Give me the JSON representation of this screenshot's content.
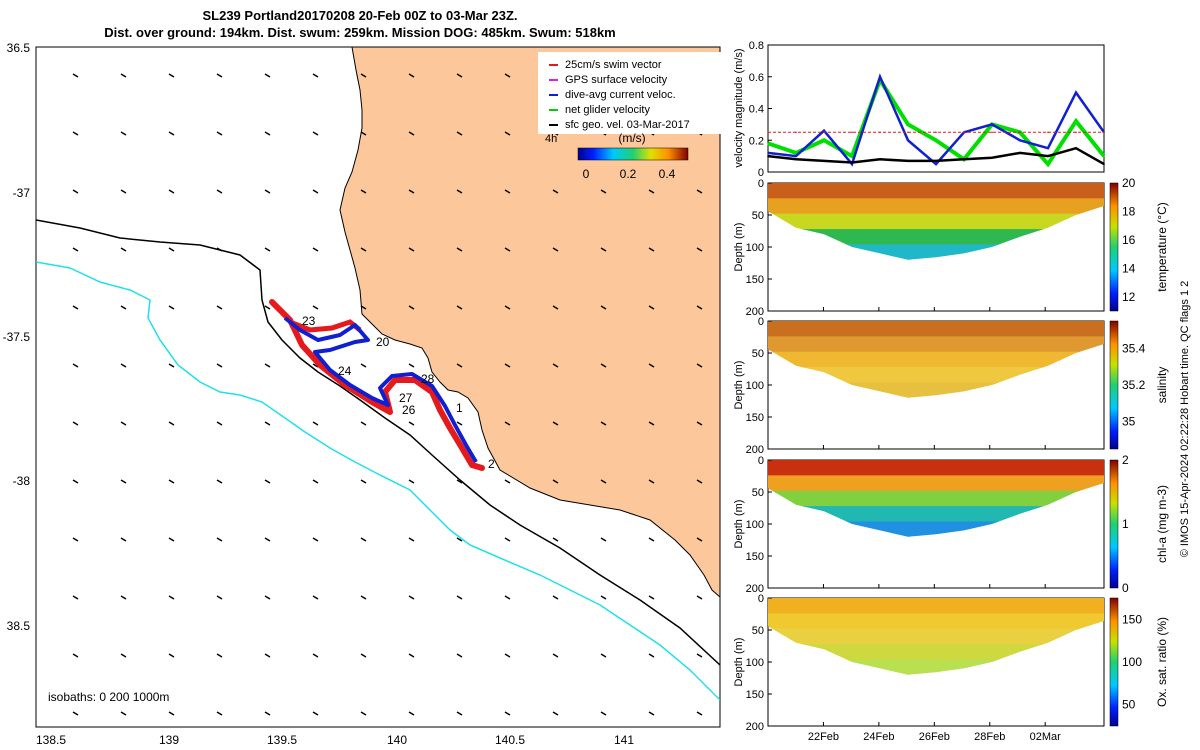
{
  "title_line1": "SL239 Portland20170208 20-Feb 00Z to 03-Mar 23Z.",
  "title_line2": "Dist. over ground: 194km. Dist. swum: 259km. Mission DOG: 485km. Swum: 518km",
  "map": {
    "x_ticks": [
      "138.5",
      "139",
      "139.5",
      "140",
      "140.5",
      "141"
    ],
    "y_ticks": [
      "36.5",
      "-37",
      "-37.5",
      "-38",
      "38.5"
    ],
    "legend": [
      "25cm/s swim vector",
      "GPS surface velocity",
      "dive-avg current veloc.",
      "net glider velocity",
      "sfc geo. vel. 03-Mar-2017"
    ],
    "time_label": "4h",
    "colorbar_unit": "(m/s)",
    "colorbar_ticks": [
      "0",
      "0.2",
      "0.4"
    ],
    "isobaths_label": "isobaths: 0   200  1000m",
    "day_labels": [
      "23",
      "20",
      "24",
      "28",
      "27",
      "26",
      "1",
      "2"
    ],
    "colors": {
      "land": "#fcc89b",
      "iso200": "#000000",
      "iso1000": "#20e0e8",
      "track_red": "#e41a1c",
      "track_blue": "#1020d0"
    }
  },
  "chart_data": [
    {
      "type": "line",
      "title": "",
      "xlabel": "",
      "ylabel": "velocity magnitude (m/s)",
      "ylim": [
        0,
        0.8
      ],
      "y_ticks": [
        "0",
        "0.2",
        "0.4",
        "0.6",
        "0.8"
      ],
      "x_days": [
        0,
        1,
        2,
        3,
        4,
        5,
        6,
        7,
        8,
        9,
        10,
        11,
        12
      ],
      "series": [
        {
          "name": "net glider velocity",
          "color": "#00e000",
          "values": [
            0.18,
            0.12,
            0.2,
            0.1,
            0.58,
            0.3,
            0.2,
            0.08,
            0.3,
            0.25,
            0.05,
            0.32,
            0.1
          ]
        },
        {
          "name": "dive-avg current veloc.",
          "color": "#1020d0",
          "values": [
            0.12,
            0.1,
            0.26,
            0.05,
            0.6,
            0.2,
            0.05,
            0.25,
            0.3,
            0.2,
            0.15,
            0.5,
            0.25
          ]
        },
        {
          "name": "sfc geo. vel.",
          "color": "#000000",
          "values": [
            0.1,
            0.08,
            0.07,
            0.06,
            0.08,
            0.07,
            0.07,
            0.08,
            0.09,
            0.12,
            0.1,
            0.15,
            0.05
          ]
        },
        {
          "name": "25cm/s reference",
          "color": "#e41a1c",
          "values": [
            0.25,
            0.25,
            0.25,
            0.25,
            0.25,
            0.25,
            0.25,
            0.25,
            0.25,
            0.25,
            0.25,
            0.25,
            0.25
          ]
        }
      ]
    },
    {
      "type": "heatmap",
      "ylabel": "Depth (m)",
      "y_ticks": [
        "0",
        "50",
        "100",
        "150",
        "200"
      ],
      "colorbar_label": "temperature (°C)",
      "colorbar_ticks": [
        "12",
        "14",
        "16",
        "18",
        "20"
      ],
      "clim": [
        11,
        20
      ]
    },
    {
      "type": "heatmap",
      "ylabel": "Depth (m)",
      "y_ticks": [
        "0",
        "50",
        "100",
        "150",
        "200"
      ],
      "colorbar_label": "salinity",
      "colorbar_ticks": [
        "35",
        "35.2",
        "35.4"
      ],
      "clim": [
        34.85,
        35.55
      ]
    },
    {
      "type": "heatmap",
      "ylabel": "Depth (m)",
      "y_ticks": [
        "0",
        "50",
        "100",
        "150",
        "200"
      ],
      "colorbar_label": "chl-a (mg m-3)",
      "colorbar_ticks": [
        "0",
        "1",
        "2"
      ],
      "clim": [
        0,
        2
      ]
    },
    {
      "type": "heatmap",
      "ylabel": "Depth (m)",
      "y_ticks": [
        "0",
        "50",
        "100",
        "150",
        "200"
      ],
      "colorbar_label": "Ox. sat. ratio (%)",
      "colorbar_ticks": [
        "50",
        "100",
        "150"
      ],
      "clim": [
        25,
        175
      ]
    }
  ],
  "time_axis": [
    "22Feb",
    "24Feb",
    "26Feb",
    "28Feb",
    "02Mar"
  ],
  "side_note": "© IMOS 15-Apr-2024 02:22:28 Hobart time. QC flags 1  2"
}
